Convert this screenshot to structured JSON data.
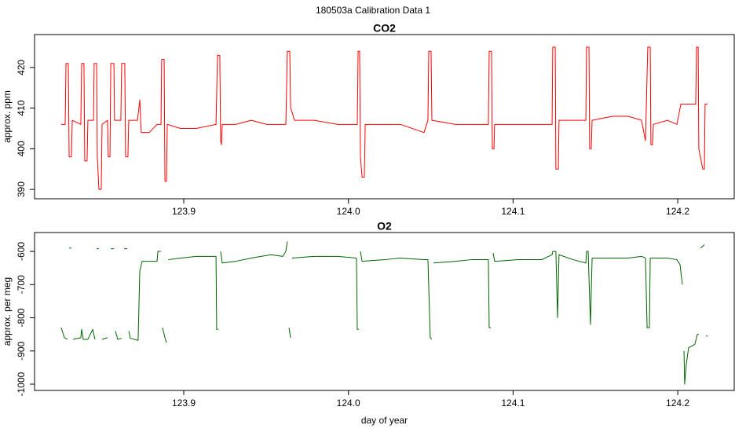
{
  "title": "180503a   Calibration Data 1",
  "chart_data": [
    {
      "type": "line",
      "title": "CO2",
      "ylabel": "approx. ppm",
      "color": "#ff0000",
      "x": [
        123.8256,
        123.828,
        123.8285,
        123.8299,
        123.8304,
        123.8318,
        123.8323,
        123.8375,
        123.838,
        123.8394,
        123.8399,
        123.8413,
        123.8418,
        123.8452,
        123.8456,
        123.8471,
        123.8475,
        123.8485,
        123.8499,
        123.8504,
        123.8537,
        123.8542,
        123.8552,
        123.8557,
        123.8576,
        123.858,
        123.8618,
        123.8623,
        123.8642,
        123.8647,
        123.8661,
        123.8666,
        123.8719,
        123.8733,
        123.8742,
        123.879,
        123.8838,
        123.8862,
        123.8866,
        123.8881,
        123.8886,
        123.8895,
        123.89,
        123.8981,
        123.9076,
        123.9196,
        123.9205,
        123.9219,
        123.9224,
        123.9229,
        123.9234,
        123.9315,
        123.941,
        123.9505,
        123.962,
        123.9629,
        123.9644,
        123.9649,
        123.9658,
        123.9672,
        123.9792,
        123.9935,
        124.0054,
        124.0059,
        124.0068,
        124.0073,
        124.0083,
        124.0097,
        124.0102,
        124.0221,
        124.0316,
        124.0459,
        124.0483,
        124.0488,
        124.0502,
        124.0507,
        124.065,
        124.0745,
        124.085,
        124.0855,
        124.0869,
        124.0874,
        124.0884,
        124.0888,
        124.1031,
        124.1175,
        124.1237,
        124.1241,
        124.1256,
        124.126,
        124.1275,
        124.1279,
        124.1365,
        124.1442,
        124.1446,
        124.1461,
        124.1465,
        124.1475,
        124.148,
        124.1604,
        124.1699,
        124.178,
        124.1804,
        124.1818,
        124.1833,
        124.1837,
        124.1847,
        124.1852,
        124.1938,
        124.1995,
        124.2019,
        124.2081,
        124.2109,
        124.2114,
        124.2124,
        124.2128,
        124.2152,
        124.2162,
        124.2166,
        124.2181
      ],
      "values": [
        406,
        406,
        421,
        421,
        398,
        398,
        407,
        406,
        421,
        421,
        397,
        397,
        407,
        407,
        421,
        421,
        398,
        390,
        390,
        406,
        407,
        398,
        398,
        421,
        421,
        407,
        407,
        421,
        421,
        398,
        398,
        407,
        407,
        412,
        404,
        404,
        406,
        406,
        422,
        422,
        392,
        392,
        406,
        405,
        405,
        406,
        423,
        423,
        402,
        401,
        406,
        406,
        407,
        406,
        406,
        424,
        424,
        410,
        409,
        407,
        407,
        406,
        406,
        424,
        424,
        398,
        393,
        393,
        406,
        406,
        406,
        404,
        407,
        424,
        424,
        407,
        406,
        406,
        406,
        424,
        424,
        400,
        400,
        406,
        406,
        406,
        406,
        425,
        425,
        395,
        395,
        407,
        407,
        407,
        425,
        425,
        400,
        400,
        407,
        408,
        408,
        407,
        402,
        425,
        425,
        401,
        401,
        406,
        407,
        406,
        411,
        411,
        411,
        425,
        425,
        400,
        395,
        395,
        411,
        411
      ],
      "xlim": [
        123.8094,
        124.2343
      ],
      "ylim": [
        387.7,
        428.1
      ],
      "xticks": [
        123.9,
        {
          "value": 124.0,
          "label": "124.0"
        },
        124.1,
        124.2
      ],
      "yticks": [
        390,
        400,
        410,
        420
      ]
    },
    {
      "type": "line",
      "title": "O2",
      "ylabel": "approx. per meg",
      "xlabel": "day of year",
      "color": "#006400",
      "x": [
        123.8256,
        123.8275,
        123.8294,
        123.8299,
        123.8304,
        123.8318,
        123.8323,
        123.8328,
        123.8375,
        123.838,
        123.839,
        123.8418,
        123.8447,
        123.8461,
        123.8466,
        123.8471,
        123.8485,
        123.849,
        123.8504,
        123.8537,
        123.8542,
        123.8557,
        123.8576,
        123.858,
        123.8585,
        123.8599,
        123.8623,
        123.8628,
        123.8638,
        123.8657,
        123.8661,
        123.8666,
        123.8676,
        123.8723,
        123.8733,
        123.8747,
        123.879,
        123.8838,
        123.8843,
        123.8862,
        123.8866,
        123.8871,
        123.8886,
        123.8895,
        123.89,
        123.8905,
        123.8981,
        123.9076,
        123.9196,
        123.92,
        123.921,
        123.9215,
        123.9224,
        123.9234,
        123.9315,
        123.941,
        123.9529,
        123.9601,
        123.962,
        123.9629,
        123.9634,
        123.9639,
        123.9649,
        123.9653,
        123.9658,
        123.9792,
        123.9935,
        124.0049,
        124.0054,
        124.0063,
        124.0068,
        124.0073,
        124.0083,
        124.0221,
        124.0316,
        124.0459,
        124.0483,
        124.0497,
        124.0507,
        124.0512,
        124.0516,
        124.065,
        124.0745,
        124.085,
        124.0855,
        124.0865,
        124.0869,
        124.0879,
        124.0888,
        124.1031,
        124.1175,
        124.1237,
        124.1241,
        124.126,
        124.127,
        124.1279,
        124.1365,
        124.1442,
        124.1446,
        124.1456,
        124.147,
        124.148,
        124.1604,
        124.1699,
        124.178,
        124.1804,
        124.1814,
        124.1828,
        124.1833,
        124.1938,
        124.1995,
        124.2014,
        124.2028,
        124.2033,
        124.2038,
        124.2042,
        124.2052,
        124.2066,
        124.2104,
        124.2119,
        124.2128,
        124.2133,
        124.2138,
        124.2162,
        124.2166,
        124.2171,
        124.2181
      ],
      "values": [
        -830,
        -860,
        -865,
        null,
        -590,
        -590,
        null,
        -865,
        -860,
        -835,
        -865,
        -865,
        -835,
        -865,
        null,
        -592,
        -592,
        null,
        -865,
        -860,
        null,
        -592,
        -592,
        null,
        -840,
        -865,
        -862,
        null,
        -592,
        -592,
        null,
        -840,
        -862,
        -868,
        -660,
        -630,
        -630,
        -630,
        -600,
        -600,
        null,
        -830,
        -860,
        -875,
        null,
        -625,
        -620,
        -615,
        -615,
        -835,
        -835,
        null,
        -600,
        -635,
        -630,
        -620,
        -610,
        -615,
        -600,
        -570,
        null,
        -830,
        -860,
        null,
        -620,
        -615,
        -615,
        -620,
        -835,
        -835,
        null,
        -600,
        -630,
        -625,
        -620,
        -625,
        -625,
        -860,
        -865,
        null,
        -635,
        -630,
        -625,
        -625,
        -830,
        -830,
        null,
        -605,
        -630,
        -625,
        -625,
        -610,
        -600,
        -600,
        -800,
        -610,
        -625,
        -635,
        -600,
        -600,
        -820,
        -620,
        -620,
        -620,
        -615,
        -620,
        -830,
        -830,
        -620,
        -620,
        -625,
        -640,
        -700,
        null,
        -900,
        -1000,
        -940,
        -890,
        -880,
        -850,
        -850,
        null,
        -590,
        -580,
        null,
        -855,
        -855
      ],
      "xlim": [
        123.8094,
        124.2343
      ],
      "ylim": [
        -1018.9,
        -543.2
      ],
      "xticks": [
        123.9,
        {
          "value": 124.0,
          "label": "124.0"
        },
        124.1,
        124.2
      ],
      "yticks": [
        -1000,
        -900,
        -800,
        -700,
        -600
      ]
    }
  ]
}
